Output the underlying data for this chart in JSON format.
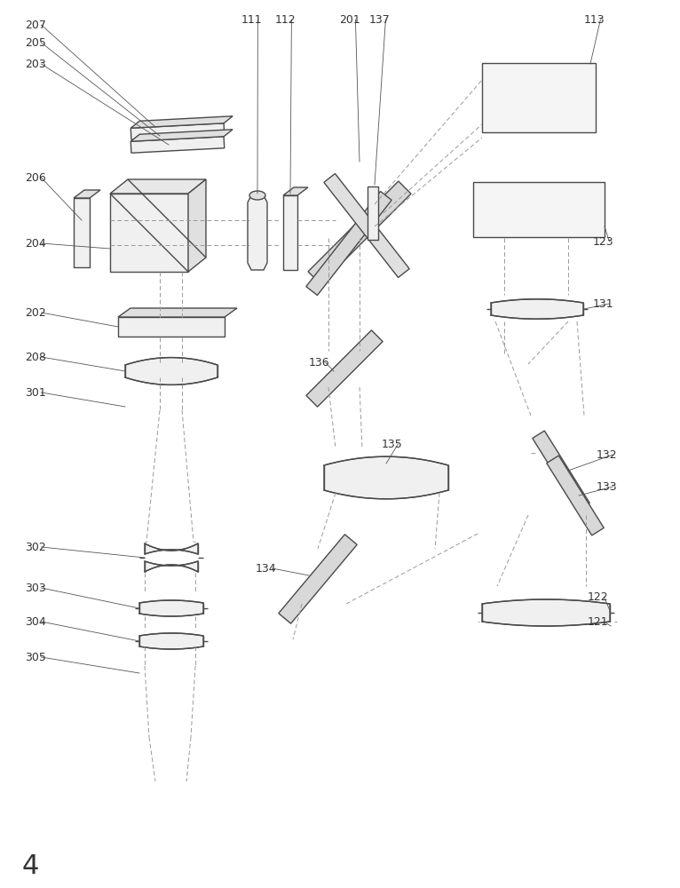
{
  "bg_color": "#ffffff",
  "line_color": "#4a4a4a",
  "dashed_color": "#999999",
  "label_color": "#333333",
  "lw": 1.0,
  "dlw": 0.7
}
